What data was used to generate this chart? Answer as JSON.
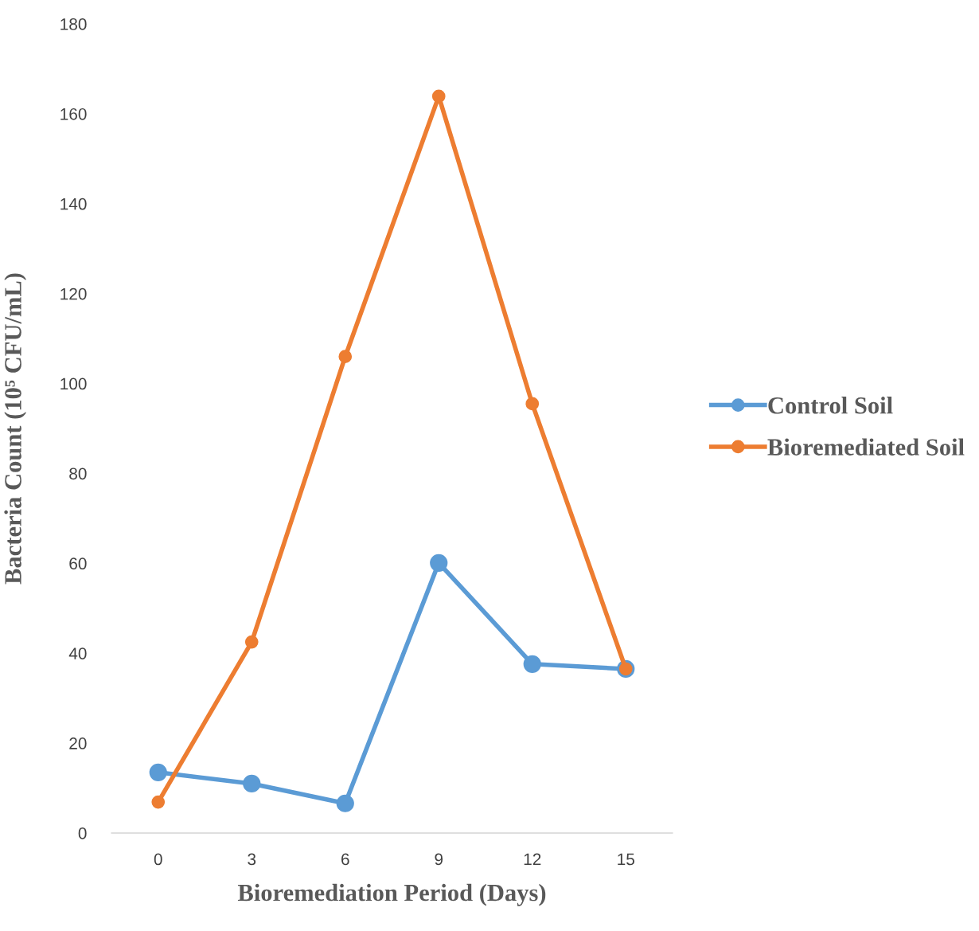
{
  "chart_data": {
    "type": "line",
    "xlabel": "Bioremediation Period (Days)",
    "ylabel": "Bacteria Count (10⁵ CFU/mL)",
    "categories": [
      "0",
      "3",
      "6",
      "9",
      "12",
      "15"
    ],
    "series": [
      {
        "name": "Control Soil",
        "color": "#5b9bd5",
        "values": [
          13.5,
          11.0,
          6.6,
          60.1,
          37.6,
          36.5
        ]
      },
      {
        "name": "Bioremediated Soil",
        "color": "#ed7d31",
        "values": [
          6.9,
          42.5,
          106,
          163.9,
          95.5,
          36.5
        ]
      }
    ],
    "ylim": [
      0,
      180
    ],
    "yticks": [
      0,
      20,
      40,
      60,
      80,
      100,
      120,
      140,
      160,
      180
    ],
    "grid": false,
    "legend": "right",
    "marker": "circle",
    "line_style": "solid"
  }
}
